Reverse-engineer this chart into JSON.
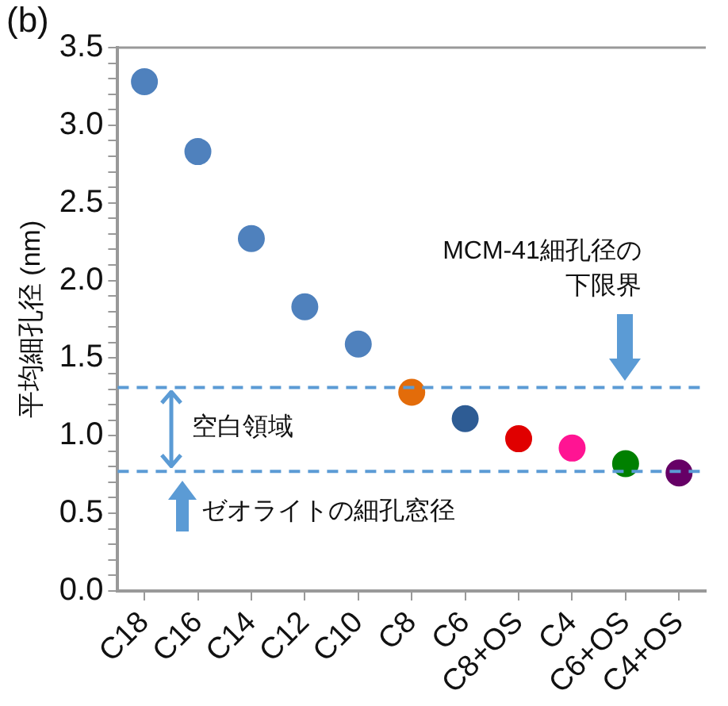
{
  "chart_data": {
    "type": "scatter",
    "ylabel": "平均細孔径 (nm)",
    "categories": [
      "C18",
      "C16",
      "C14",
      "C12",
      "C10",
      "C8",
      "C6",
      "C8+OS",
      "C4",
      "C6+OS",
      "C4+OS"
    ],
    "values": [
      3.28,
      2.83,
      2.27,
      1.83,
      1.59,
      1.28,
      1.11,
      0.98,
      0.92,
      0.82,
      0.76
    ],
    "colors": [
      "#4f81bd",
      "#4f81bd",
      "#4f81bd",
      "#4f81bd",
      "#4f81bd",
      "#e36c0a",
      "#2e5c94",
      "#e00000",
      "#ff1493",
      "#008000",
      "#660066"
    ],
    "ylim": [
      0,
      3.5
    ],
    "yticks": [
      {
        "value": 0,
        "label": "0.0"
      },
      {
        "value": 0.1,
        "label": null
      },
      {
        "value": 0.2,
        "label": null
      },
      {
        "value": 0.3,
        "label": null
      },
      {
        "value": 0.4,
        "label": null
      },
      {
        "value": 0.5,
        "label": "0.5"
      },
      {
        "value": 0.6,
        "label": null
      },
      {
        "value": 0.7,
        "label": null
      },
      {
        "value": 0.8,
        "label": null
      },
      {
        "value": 0.9,
        "label": null
      },
      {
        "value": 1,
        "label": "1.0"
      },
      {
        "value": 1.1,
        "label": null
      },
      {
        "value": 1.2,
        "label": null
      },
      {
        "value": 1.3,
        "label": null
      },
      {
        "value": 1.4,
        "label": null
      },
      {
        "value": 1.5,
        "label": "1.5"
      },
      {
        "value": 1.6,
        "label": null
      },
      {
        "value": 1.7,
        "label": null
      },
      {
        "value": 1.8,
        "label": null
      },
      {
        "value": 1.9,
        "label": null
      },
      {
        "value": 2,
        "label": "2.0"
      },
      {
        "value": 2.1,
        "label": null
      },
      {
        "value": 2.2,
        "label": null
      },
      {
        "value": 2.3,
        "label": null
      },
      {
        "value": 2.4,
        "label": null
      },
      {
        "value": 2.5,
        "label": "2.5"
      },
      {
        "value": 2.6,
        "label": null
      },
      {
        "value": 2.7,
        "label": null
      },
      {
        "value": 2.8,
        "label": null
      },
      {
        "value": 2.9,
        "label": null
      },
      {
        "value": 3,
        "label": "3.0"
      },
      {
        "value": 3.1,
        "label": null
      },
      {
        "value": 3.2,
        "label": null
      },
      {
        "value": 3.3,
        "label": null
      },
      {
        "value": 3.4,
        "label": null
      },
      {
        "value": 3.5,
        "label": "3.5"
      }
    ],
    "ref_lines": [
      {
        "axis": "y",
        "value": 1.31,
        "color": "#5b9bd5",
        "line_style": "dashed"
      },
      {
        "axis": "y",
        "value": 0.77,
        "color": "#5b9bd5",
        "line_style": "dashed"
      }
    ],
    "annotations": [
      "(b)",
      "MCM-41細孔径の下限界",
      "空白領域",
      "ゼオライトの細孔窓径"
    ],
    "marker": "circle",
    "grid": false,
    "legend": false
  }
}
